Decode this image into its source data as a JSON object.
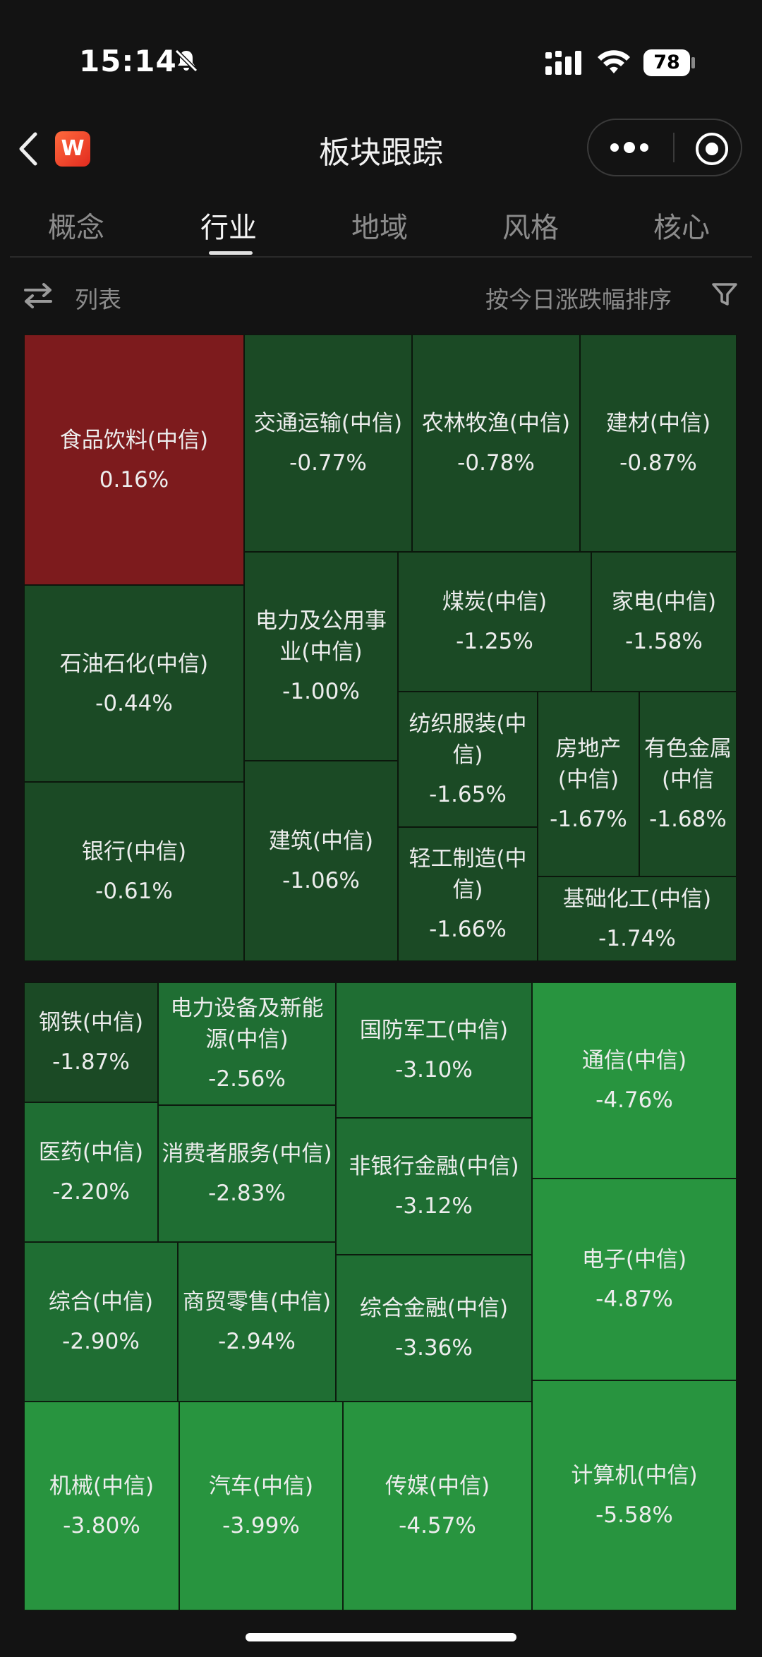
{
  "status_bar": {
    "time": "15:14",
    "battery": "78"
  },
  "nav": {
    "title": "板块跟踪",
    "logo": "W",
    "icons": [
      "back-icon",
      "more-dots-icon",
      "record-target-icon",
      "bell-muted-icon",
      "signal-icon",
      "wifi-icon"
    ]
  },
  "tabs": [
    {
      "label": "概念",
      "active": false
    },
    {
      "label": "行业",
      "active": true
    },
    {
      "label": "地域",
      "active": false
    },
    {
      "label": "风格",
      "active": false
    },
    {
      "label": "核心",
      "active": false
    }
  ],
  "toolbar": {
    "list_label": "列表",
    "sort_label": "按今日涨跌幅排序",
    "icons": [
      "swap-icon",
      "filter-icon"
    ]
  },
  "colors": {
    "up": "#7d1b1d",
    "down_dark": "#1b4a25",
    "down_mid": "#1f6e33",
    "down_bright": "#28943f"
  },
  "sectors": [
    {
      "name": "食品饮料(中信)",
      "change": "0.16%"
    },
    {
      "name": "交通运输(中信)",
      "change": "-0.77%"
    },
    {
      "name": "农林牧渔(中信)",
      "change": "-0.78%"
    },
    {
      "name": "建材(中信)",
      "change": "-0.87%"
    },
    {
      "name": "石油石化(中信)",
      "change": "-0.44%"
    },
    {
      "name": "电力及公用事业(中信)",
      "change": "-1.00%"
    },
    {
      "name": "煤炭(中信)",
      "change": "-1.25%"
    },
    {
      "name": "家电(中信)",
      "change": "-1.58%"
    },
    {
      "name": "纺织服装(中信)",
      "change": "-1.65%"
    },
    {
      "name": "房地产(中信)",
      "change": "-1.67%"
    },
    {
      "name": "有色金属(中信",
      "change": "-1.68%"
    },
    {
      "name": "银行(中信)",
      "change": "-0.61%"
    },
    {
      "name": "建筑(中信)",
      "change": "-1.06%"
    },
    {
      "name": "轻工制造(中信)",
      "change": "-1.66%"
    },
    {
      "name": "基础化工(中信)",
      "change": "-1.74%"
    },
    {
      "name": "钢铁(中信)",
      "change": "-1.87%"
    },
    {
      "name": "电力设备及新能源(中信)",
      "change": "-2.56%"
    },
    {
      "name": "国防军工(中信)",
      "change": "-3.10%"
    },
    {
      "name": "通信(中信)",
      "change": "-4.76%"
    },
    {
      "name": "医药(中信)",
      "change": "-2.20%"
    },
    {
      "name": "消费者服务(中信)",
      "change": "-2.83%"
    },
    {
      "name": "非银行金融(中信)",
      "change": "-3.12%"
    },
    {
      "name": "电子(中信)",
      "change": "-4.87%"
    },
    {
      "name": "综合(中信)",
      "change": "-2.90%"
    },
    {
      "name": "商贸零售(中信)",
      "change": "-2.94%"
    },
    {
      "name": "综合金融(中信)",
      "change": "-3.36%"
    },
    {
      "name": "机械(中信)",
      "change": "-3.80%"
    },
    {
      "name": "汽车(中信)",
      "change": "-3.99%"
    },
    {
      "name": "传媒(中信)",
      "change": "-4.57%"
    },
    {
      "name": "计算机(中信)",
      "change": "-5.58%"
    }
  ]
}
